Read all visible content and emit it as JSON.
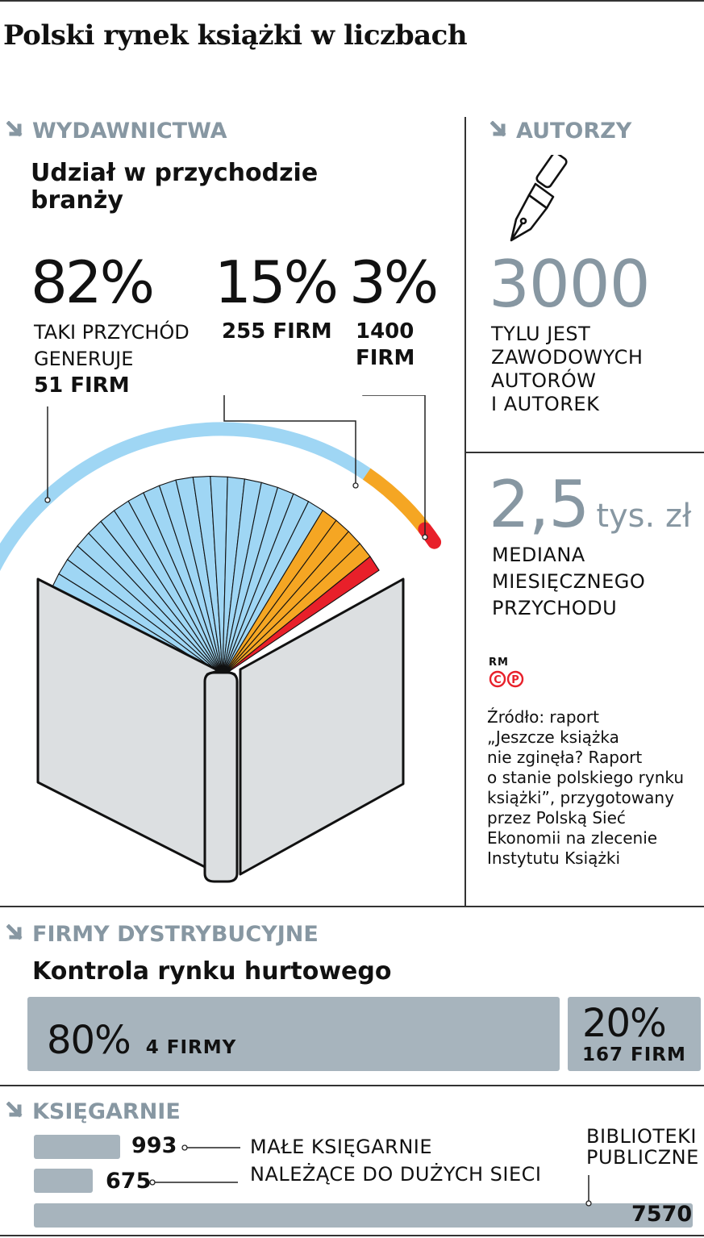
{
  "title": "Polski rynek książki w liczbach",
  "wydawnictwa": {
    "heading": "WYDAWNICTWA",
    "subtitle_line1": "Udział w przychodzie",
    "subtitle_line2": "branży",
    "groups": [
      {
        "pct": "82%",
        "label_line1": "TAKI PRZYCHÓD",
        "label_line2": "GENERUJE",
        "firms": "51 FIRM",
        "color": "#9fd6f4"
      },
      {
        "pct": "15%",
        "firms": "255 FIRM",
        "color": "#f5a623"
      },
      {
        "pct": "3%",
        "firms_line1": "1400",
        "firms_line2": "FIRM",
        "color": "#e8202a"
      }
    ]
  },
  "autorzy": {
    "heading": "AUTORZY",
    "icon": "fountain-pen-icon",
    "value": "3000",
    "label_lines": [
      "TYLU JEST",
      "ZAWODOWYCH",
      "AUTORÓW",
      "I AUTOREK"
    ],
    "median_value": "2,5",
    "median_unit": "tys. zł",
    "median_lines": [
      "MEDIANA",
      "MIESIĘCZNEGO",
      "PRZYCHODU"
    ]
  },
  "credit": {
    "rm": "RM",
    "cp": "CP",
    "color": "#e8202a"
  },
  "source_lines": [
    "Źródło: raport",
    "„Jeszcze książka",
    "nie zginęła? Raport",
    "o stanie polskiego rynku",
    "książki”, przygotowany",
    "przez Polską Sieć",
    "Ekonomii na zlecenie",
    "Instytutu Książki"
  ],
  "dystrybucja": {
    "heading": "FIRMY DYSTRYBUCYJNE",
    "subtitle": "Kontrola rynku hurtowego",
    "bars": [
      {
        "pct": "80%",
        "label": "4 FIRMY",
        "value": 80
      },
      {
        "pct": "20%",
        "label": "167 FIRM",
        "value": 20
      }
    ]
  },
  "ksiegarnie": {
    "heading": "KSIĘGARNIE",
    "items": [
      {
        "value": 993,
        "label": "MAŁE KSIĘGARNIE"
      },
      {
        "value": 675,
        "label": "NALEŻĄCE DO DUŻYCH SIECI"
      },
      {
        "value": 7570,
        "label_line1": "BIBLIOTEKI",
        "label_line2": "PUBLICZNE"
      }
    ]
  },
  "chart_data": [
    {
      "type": "pie",
      "title": "Udział w przychodzie branży",
      "categories": [
        "51 FIRM",
        "255 FIRM",
        "1400 FIRM"
      ],
      "values": [
        82,
        15,
        3
      ]
    },
    {
      "type": "bar",
      "title": "Kontrola rynku hurtowego",
      "categories": [
        "4 FIRMY",
        "167 FIRM"
      ],
      "values": [
        80,
        20
      ]
    },
    {
      "type": "bar",
      "title": "KSIĘGARNIE",
      "categories": [
        "MAŁE KSIĘGARNIE",
        "NALEŻĄCE DO DUŻYCH SIECI",
        "BIBLIOTEKI PUBLICZNE"
      ],
      "values": [
        993,
        675,
        7570
      ]
    }
  ]
}
